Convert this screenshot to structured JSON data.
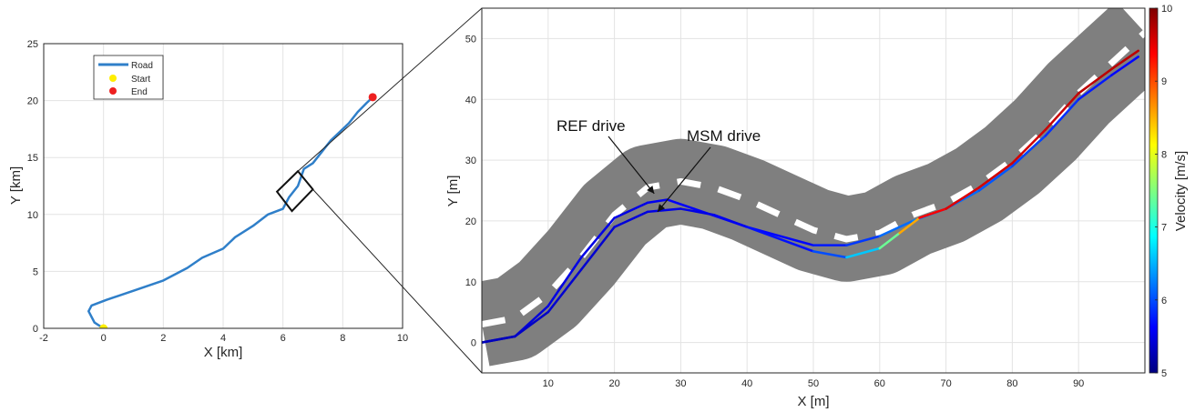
{
  "chart_data": [
    {
      "type": "line",
      "xlabel": "X [km]",
      "ylabel": "Y [km]",
      "xlim": [
        -2,
        10
      ],
      "ylim": [
        0,
        25
      ],
      "xticks": [
        -2,
        0,
        2,
        4,
        6,
        8,
        10
      ],
      "yticks": [
        0,
        5,
        10,
        15,
        20,
        25
      ],
      "grid": true,
      "legend": {
        "placement": "top-left",
        "entries": [
          "Road",
          "Start",
          "End"
        ]
      },
      "colors": {
        "road": "#2f7fc9",
        "start": "#ffee00",
        "end": "#ee2020"
      },
      "series": [
        {
          "name": "Road",
          "x": [
            0,
            -0.3,
            -0.5,
            -0.4,
            0.1,
            1.0,
            2.0,
            2.8,
            3.3,
            4.0,
            4.4,
            5.0,
            5.5,
            6.0,
            6.2,
            6.5,
            6.7,
            7.0,
            7.3,
            7.6,
            7.8,
            8.2,
            8.5,
            8.8,
            9.0
          ],
          "y": [
            0,
            0.5,
            1.5,
            2.0,
            2.5,
            3.3,
            4.2,
            5.3,
            6.2,
            7.0,
            8.0,
            9.0,
            10.0,
            10.5,
            11.5,
            12.5,
            14.0,
            14.5,
            15.5,
            16.5,
            17.0,
            18.0,
            19.0,
            19.8,
            20.3
          ]
        },
        {
          "name": "Start",
          "x": [
            0
          ],
          "y": [
            0
          ]
        },
        {
          "name": "End",
          "x": [
            9.0
          ],
          "y": [
            20.3
          ]
        }
      ],
      "zoom_box": {
        "x": [
          5.8,
          6.5,
          7.0,
          6.3
        ],
        "y": [
          12.0,
          13.8,
          12.2,
          10.3
        ]
      }
    },
    {
      "type": "line",
      "xlabel": "X [m]",
      "ylabel": "Y [m]",
      "xlim": [
        0,
        100
      ],
      "ylim": [
        -5,
        55
      ],
      "xticks": [
        10,
        20,
        30,
        40,
        50,
        60,
        70,
        80,
        90
      ],
      "yticks": [
        0,
        10,
        20,
        30,
        40,
        50
      ],
      "grid": true,
      "colorbar": {
        "label": "Velocity [m/s]",
        "min": 5,
        "max": 10,
        "ticks": [
          5,
          6,
          7,
          8,
          9,
          10
        ]
      },
      "road": {
        "x": [
          0,
          5,
          10,
          15,
          20,
          25,
          30,
          35,
          40,
          45,
          50,
          55,
          60,
          65,
          70,
          75,
          80,
          85,
          90,
          95,
          100
        ],
        "y": [
          3,
          4,
          8,
          14,
          21,
          25.5,
          26.5,
          25.5,
          23.5,
          21,
          18.5,
          17,
          18,
          21,
          23,
          26,
          30,
          35,
          41,
          46,
          51
        ],
        "half_width_m": 7,
        "surface_color": "#7f7f7f",
        "dash_color": "#ffffff"
      },
      "series": [
        {
          "name": "REF drive",
          "x": [
            0,
            5,
            10,
            15,
            20,
            25,
            28,
            32,
            40,
            50,
            55,
            60,
            65,
            70,
            75,
            80,
            85,
            90,
            95,
            99
          ],
          "y": [
            0,
            1,
            6,
            14,
            20.5,
            23,
            23.5,
            22,
            19,
            16,
            16,
            17.5,
            20,
            22,
            25,
            29,
            34,
            40,
            44,
            47
          ],
          "velocity": [
            5.4,
            5.4,
            5.5,
            5.5,
            5.5,
            5.5,
            5.6,
            5.6,
            5.6,
            5.7,
            5.8,
            6.0,
            6.3,
            6.2,
            6.1,
            6.0,
            5.9,
            5.8,
            5.7,
            5.6
          ]
        },
        {
          "name": "MSM drive",
          "x": [
            0,
            5,
            10,
            15,
            20,
            25,
            30,
            35,
            40,
            50,
            55,
            60,
            63,
            66,
            70,
            75,
            80,
            85,
            90,
            95,
            99
          ],
          "y": [
            0,
            1,
            5,
            12,
            19,
            21.5,
            22,
            21,
            19,
            15,
            14,
            15.5,
            18,
            20.5,
            22,
            25.5,
            29.5,
            35,
            41,
            45,
            48
          ],
          "velocity": [
            5.3,
            5.3,
            5.4,
            5.4,
            5.4,
            5.5,
            5.5,
            5.5,
            5.6,
            5.8,
            6.2,
            7.0,
            7.8,
            9.3,
            9.5,
            9.6,
            9.6,
            9.6,
            9.7,
            9.7,
            9.7
          ]
        }
      ],
      "annotations": [
        {
          "text": "REF drive",
          "target": {
            "x": 26,
            "y": 24.5
          }
        },
        {
          "text": "MSM drive",
          "target": {
            "x": 26.5,
            "y": 21.5
          }
        }
      ]
    }
  ]
}
